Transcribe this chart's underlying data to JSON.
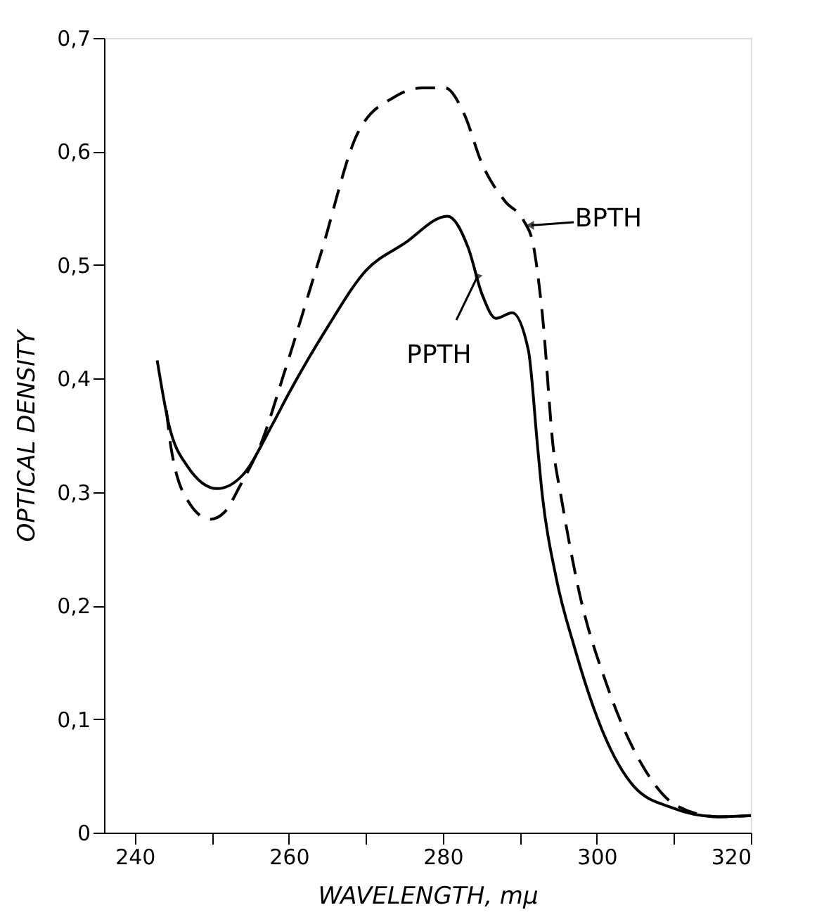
{
  "chart_data": {
    "type": "line",
    "xlabel": "WAVELENGTH, mμ",
    "ylabel": "OPTICAL DENSITY",
    "xlim": [
      236,
      320
    ],
    "ylim": [
      0,
      0.7
    ],
    "xticks": [
      240,
      {
        "value": 250,
        "label": null
      },
      260,
      {
        "value": 270,
        "label": null
      },
      280,
      {
        "value": 290,
        "label": null
      },
      300,
      {
        "value": 310,
        "label": null
      },
      320
    ],
    "yticks": [
      0,
      {
        "value": 0.1,
        "label": "0,1"
      },
      {
        "value": 0.2,
        "label": "0,2"
      },
      {
        "value": 0.3,
        "label": "0,3"
      },
      {
        "value": 0.4,
        "label": "0,4"
      },
      {
        "value": 0.5,
        "label": "0,5"
      },
      {
        "value": 0.6,
        "label": "0,6"
      },
      {
        "value": 0.7,
        "label": "0,7"
      }
    ],
    "grid": false,
    "marker": "none",
    "series": [
      {
        "color": "#000000",
        "line_style": "solid",
        "x": [
          242.9,
          244.4,
          246.8,
          250.7,
          254,
          257.9,
          260,
          265,
          270,
          275,
          280.6,
          283.3,
          285.1,
          286.9,
          289,
          291.1,
          292.3,
          292.9,
          294.7,
          297.1,
          300.7,
          304.9,
          309.7,
          315.7,
          320
        ],
        "values": [
          0.416,
          0.36,
          0.323,
          0.303,
          0.315,
          0.36,
          0.387,
          0.445,
          0.495,
          0.519,
          0.543,
          0.515,
          0.474,
          0.453,
          0.458,
          0.425,
          0.34,
          0.298,
          0.225,
          0.163,
          0.09,
          0.04,
          0.022,
          0.014,
          0.015
        ]
      },
      {
        "color": "#000000",
        "line_style": "dashed",
        "x": [
          244.1,
          244.7,
          247.1,
          249.8,
          251.6,
          253.7,
          256.4,
          259.4,
          264.2,
          269,
          273.7,
          277.3,
          280.3,
          282.7,
          285.1,
          288.1,
          290.5,
          291.7,
          292.9,
          294.4,
          295.3,
          297.7,
          301.3,
          306.1,
          310.3,
          315.7,
          320
        ],
        "values": [
          0.372,
          0.339,
          0.29,
          0.276,
          0.282,
          0.306,
          0.343,
          0.405,
          0.511,
          0.617,
          0.648,
          0.656,
          0.656,
          0.634,
          0.589,
          0.556,
          0.539,
          0.519,
          0.458,
          0.335,
          0.298,
          0.212,
          0.13,
          0.057,
          0.024,
          0.014,
          0.015
        ]
      }
    ],
    "annotations": [
      {
        "text": "PPTH",
        "x": 284.5,
        "y": 0.49
      },
      {
        "text": "BPTH",
        "x": 291.5,
        "y": 0.535
      }
    ]
  }
}
